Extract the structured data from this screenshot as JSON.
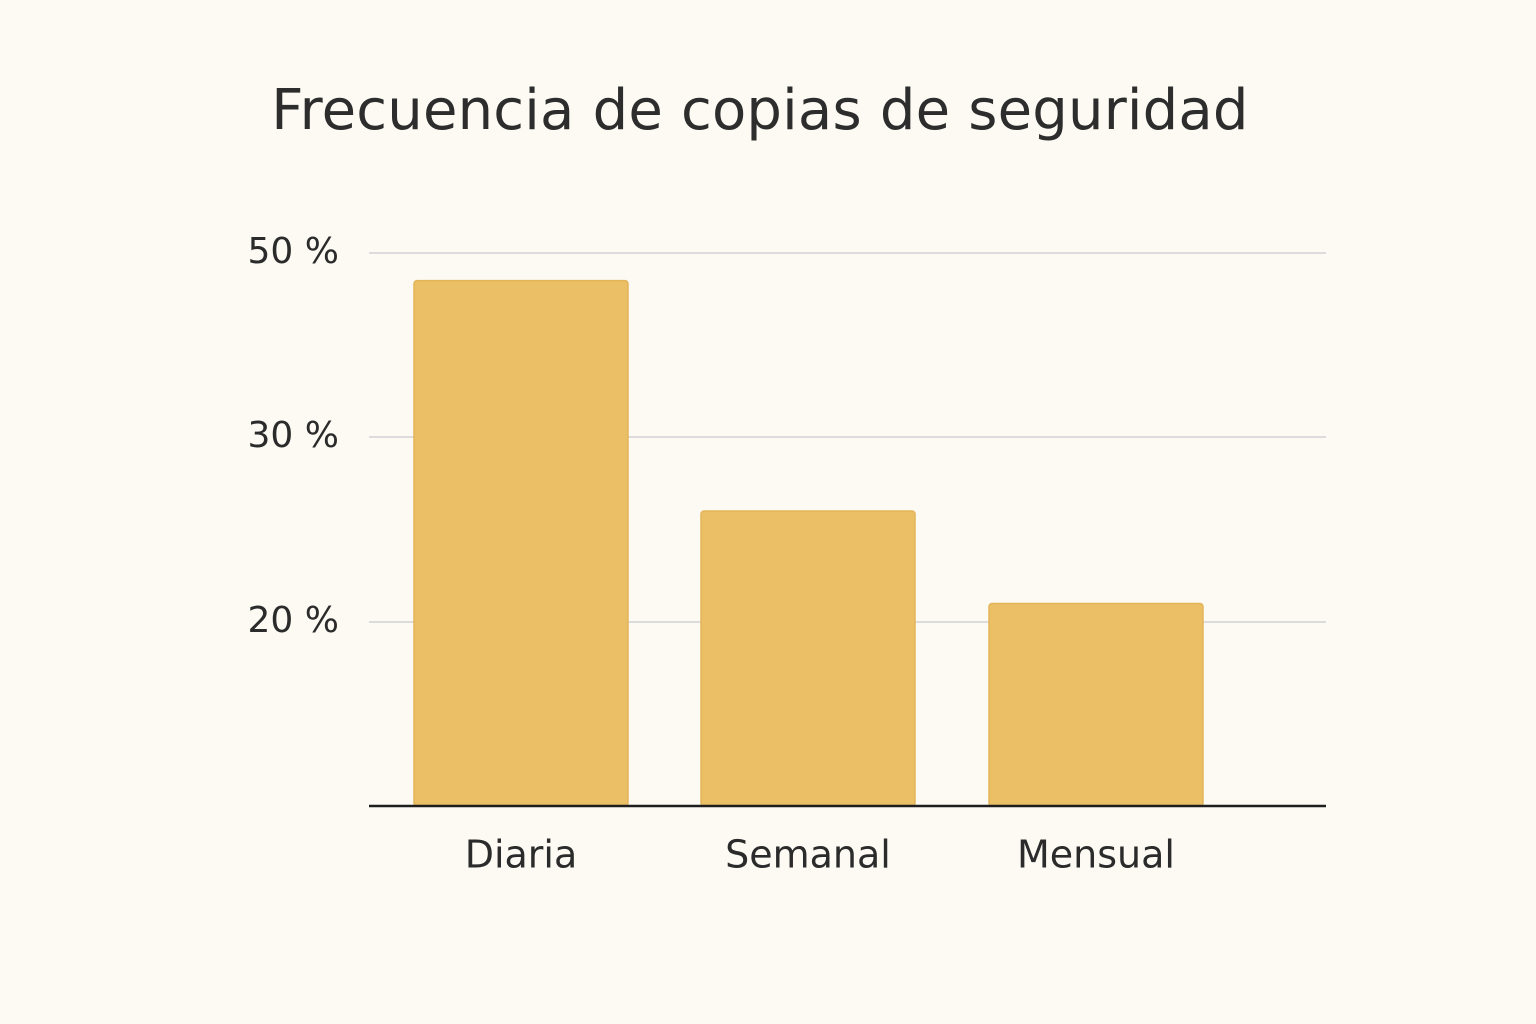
{
  "chart_data": {
    "type": "bar",
    "title": "Frecuencia de copias de seguridad",
    "xlabel": "",
    "ylabel": "",
    "categories": [
      "Diaria",
      "Semanal",
      "Mensual"
    ],
    "values": [
      47,
      26,
      21
    ],
    "y_ticks": [
      {
        "value": 20,
        "label": "20 %"
      },
      {
        "value": 30,
        "label": "30 %"
      },
      {
        "value": 50,
        "label": "50 %"
      }
    ],
    "grid": true,
    "legend": "none",
    "colors": {
      "bar": "#ebbf65",
      "bar_edge": "#e3b458",
      "grid": "#dcdcdc",
      "axis": "#1e1e1e",
      "text": "#2b2b2b",
      "background": "#fcfaf3"
    }
  }
}
